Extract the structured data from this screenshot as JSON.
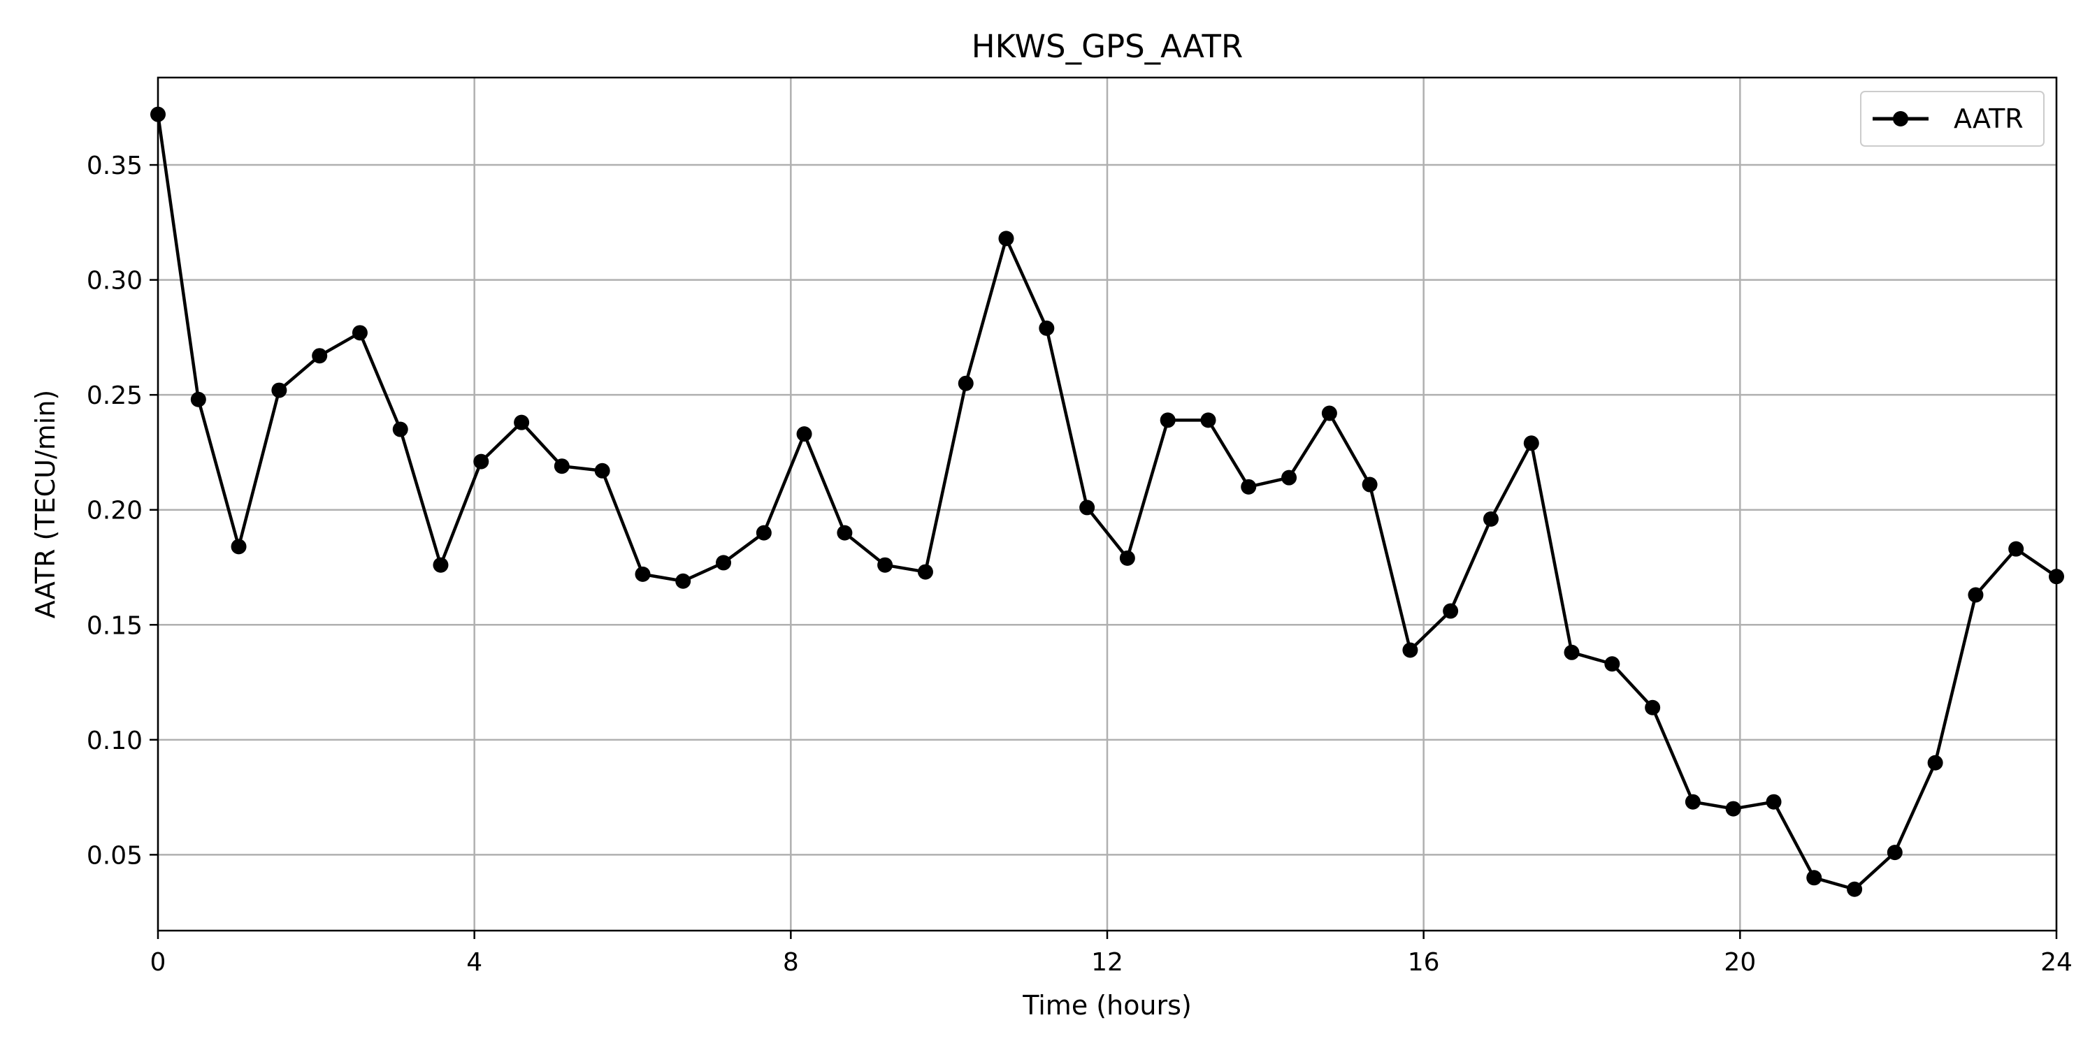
{
  "chart_data": {
    "type": "line",
    "title": "HKWS_GPS_AATR",
    "xlabel": "Time (hours)",
    "ylabel": "AATR (TECU/min)",
    "xlim": [
      0,
      24
    ],
    "ylim": [
      0.017,
      0.388
    ],
    "xticks": [
      0,
      4,
      8,
      12,
      16,
      20,
      24
    ],
    "xtick_labels": [
      "0",
      "4",
      "8",
      "12",
      "16",
      "20",
      "24"
    ],
    "yticks": [
      0.05,
      0.1,
      0.15,
      0.2,
      0.25,
      0.3,
      0.35
    ],
    "ytick_labels": [
      "0.05",
      "0.10",
      "0.15",
      "0.20",
      "0.25",
      "0.30",
      "0.35"
    ],
    "grid": true,
    "legend_position": "top-right",
    "series": [
      {
        "name": "AATR",
        "color": "#000000",
        "marker": "circle",
        "x": [
          0,
          0.511,
          1.021,
          1.532,
          2.043,
          2.553,
          3.064,
          3.574,
          4.085,
          4.596,
          5.106,
          5.617,
          6.128,
          6.638,
          7.149,
          7.66,
          8.17,
          8.681,
          9.191,
          9.702,
          10.213,
          10.723,
          11.234,
          11.745,
          12.255,
          12.766,
          13.277,
          13.787,
          14.298,
          14.809,
          15.319,
          15.83,
          16.34,
          16.851,
          17.362,
          17.872,
          18.383,
          18.894,
          19.404,
          19.915,
          20.426,
          20.936,
          21.447,
          21.957,
          22.468,
          22.979,
          23.489,
          24
        ],
        "y": [
          0.372,
          0.248,
          0.184,
          0.252,
          0.267,
          0.277,
          0.235,
          0.176,
          0.221,
          0.238,
          0.219,
          0.217,
          0.172,
          0.169,
          0.177,
          0.19,
          0.233,
          0.19,
          0.176,
          0.173,
          0.255,
          0.318,
          0.279,
          0.201,
          0.179,
          0.239,
          0.239,
          0.21,
          0.214,
          0.242,
          0.211,
          0.139,
          0.156,
          0.196,
          0.229,
          0.138,
          0.133,
          0.114,
          0.073,
          0.07,
          0.073,
          0.04,
          0.035,
          0.051,
          0.09,
          0.163,
          0.183,
          0.171
        ]
      }
    ]
  }
}
